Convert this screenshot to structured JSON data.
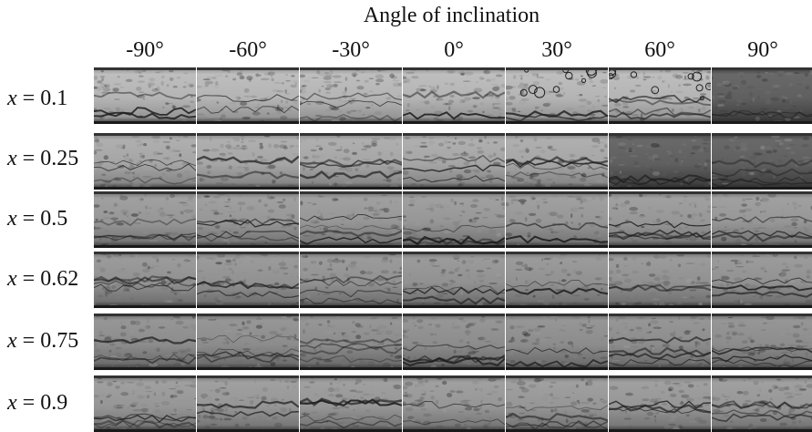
{
  "header": {
    "title": "Angle of inclination"
  },
  "angles": [
    "-90°",
    "-60°",
    "-30°",
    "0°",
    "30°",
    "60°",
    "90°"
  ],
  "rows": [
    {
      "var": "x",
      "label_rest": " = 0.1"
    },
    {
      "var": "x",
      "label_rest": " = 0.25"
    },
    {
      "var": "x",
      "label_rest": " = 0.5"
    },
    {
      "var": "x",
      "label_rest": " = 0.62"
    },
    {
      "var": "x",
      "label_rest": " = 0.75"
    },
    {
      "var": "x",
      "label_rest": " = 0.9"
    }
  ],
  "colors": {
    "background": "#ffffff",
    "cell_light": "#b8b8b8",
    "cell_mid": "#8f8f8f",
    "cell_dark": "#2a2a2a",
    "text": "#111111"
  }
}
